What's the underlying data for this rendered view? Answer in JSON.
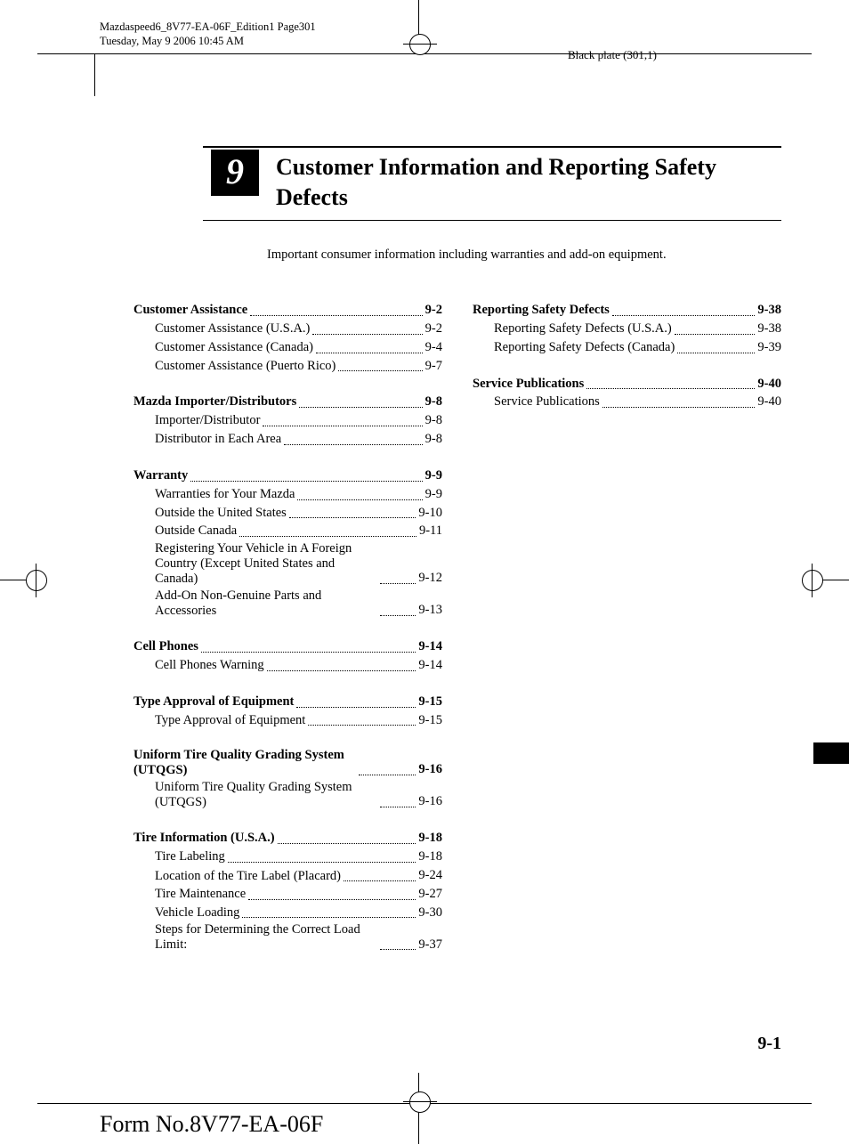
{
  "header": {
    "file_line": "Mazdaspeed6_8V77-EA-06F_Edition1 Page301",
    "date_line": "Tuesday, May 9 2006 10:45 AM",
    "plate": "Black plate (301,1)"
  },
  "chapter": {
    "number": "9",
    "title": "Customer Information and Reporting Safety Defects",
    "subtitle": "Important consumer information including warranties and add-on equipment."
  },
  "toc_left": [
    {
      "type": "section",
      "label": "Customer Assistance",
      "page": "9-2"
    },
    {
      "type": "sub",
      "label": "Customer Assistance (U.S.A.)",
      "page": "9-2"
    },
    {
      "type": "sub",
      "label": "Customer Assistance (Canada)",
      "page": "9-4"
    },
    {
      "type": "sub",
      "label": "Customer Assistance (Puerto Rico)",
      "page": "9-7"
    },
    {
      "type": "section",
      "label": "Mazda Importer/Distributors",
      "page": "9-8"
    },
    {
      "type": "sub",
      "label": "Importer/Distributor",
      "page": "9-8"
    },
    {
      "type": "sub",
      "label": "Distributor in Each Area",
      "page": "9-8"
    },
    {
      "type": "section",
      "label": "Warranty",
      "page": "9-9"
    },
    {
      "type": "sub",
      "label": "Warranties for Your Mazda",
      "page": "9-9"
    },
    {
      "type": "sub",
      "label": "Outside the United States",
      "page": "9-10"
    },
    {
      "type": "sub",
      "label": "Outside Canada",
      "page": "9-11"
    },
    {
      "type": "sub",
      "label": "Registering Your Vehicle in A Foreign Country (Except United States and Canada)",
      "page": "9-12",
      "wrap": true
    },
    {
      "type": "sub",
      "label": "Add-On Non-Genuine Parts and Accessories",
      "page": "9-13",
      "wrap": true
    },
    {
      "type": "section",
      "label": "Cell Phones",
      "page": "9-14"
    },
    {
      "type": "sub",
      "label": "Cell Phones Warning",
      "page": "9-14"
    },
    {
      "type": "section",
      "label": "Type Approval of Equipment",
      "page": "9-15"
    },
    {
      "type": "sub",
      "label": "Type Approval of Equipment",
      "page": "9-15"
    },
    {
      "type": "section",
      "label": "Uniform Tire Quality Grading System (UTQGS)",
      "page": "9-16",
      "wrap": true
    },
    {
      "type": "sub",
      "label": "Uniform Tire Quality Grading System (UTQGS)",
      "page": "9-16",
      "wrap": true
    },
    {
      "type": "section",
      "label": "Tire Information (U.S.A.)",
      "page": "9-18"
    },
    {
      "type": "sub",
      "label": "Tire Labeling",
      "page": "9-18"
    },
    {
      "type": "sub",
      "label": "Location of the Tire Label (Placard)",
      "page": "9-24",
      "wrap": true
    },
    {
      "type": "sub",
      "label": "Tire Maintenance",
      "page": "9-27"
    },
    {
      "type": "sub",
      "label": "Vehicle Loading",
      "page": "9-30"
    },
    {
      "type": "sub",
      "label": "Steps for Determining the Correct Load Limit:",
      "page": "9-37",
      "wrap": true
    }
  ],
  "toc_right": [
    {
      "type": "section",
      "label": "Reporting Safety Defects",
      "page": "9-38"
    },
    {
      "type": "sub",
      "label": "Reporting Safety Defects (U.S.A.)",
      "page": "9-38"
    },
    {
      "type": "sub",
      "label": "Reporting Safety Defects (Canada)",
      "page": "9-39"
    },
    {
      "type": "section",
      "label": "Service Publications",
      "page": "9-40"
    },
    {
      "type": "sub",
      "label": "Service Publications",
      "page": "9-40"
    }
  ],
  "page_number": "9-1",
  "form_number": "Form No.8V77-EA-06F"
}
